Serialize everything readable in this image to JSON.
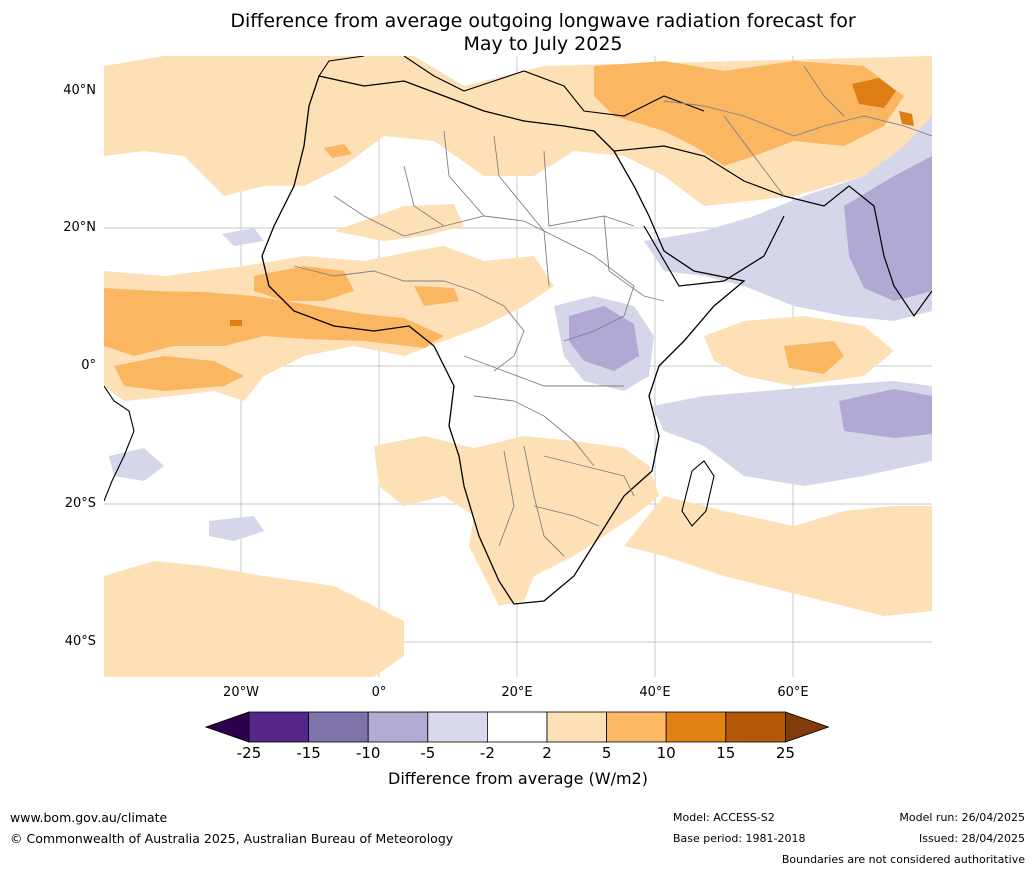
{
  "title": {
    "line1": "Difference from average outgoing longwave radiation forecast for",
    "line2": "May to July 2025"
  },
  "map": {
    "region": "Africa",
    "lat_ticks": [
      "40°N",
      "20°N",
      "0°",
      "20°S",
      "40°S"
    ],
    "lon_ticks": [
      "20°W",
      "0°",
      "20°E",
      "40°E",
      "60°E"
    ],
    "colors": {
      "ocean": "#ffffff",
      "neg_5_2": "#d6d6ea",
      "neg_10_5": "#b1a9d3",
      "pos_2_5": "#fde0b6",
      "pos_5_10": "#fbb662",
      "pos_10_15": "#de7d14",
      "pos_15_25": "#b35806",
      "coastline": "#000000",
      "borders": "#808080"
    }
  },
  "colorbar": {
    "labels": [
      "-25",
      "-15",
      "-10",
      "-5",
      "-2",
      "2",
      "5",
      "10",
      "15",
      "25"
    ],
    "colors": [
      "#2d004b",
      "#542788",
      "#8073ac",
      "#b2abd2",
      "#d8daeb",
      "#ffffff",
      "#fee0b6",
      "#fdb863",
      "#e08214",
      "#b35806",
      "#7f3b08"
    ],
    "title": "Difference from average (W/m2)"
  },
  "footer": {
    "website": "www.bom.gov.au/climate",
    "copyright": "© Commonwealth of Australia 2025, Australian Bureau of Meteorology",
    "model": "Model: ACCESS-S2",
    "base_period": "Base period: 1981-2018",
    "model_run": "Model run: 26/04/2025",
    "issued": "Issued: 28/04/2025",
    "disclaimer": "Boundaries are not considered authoritative"
  }
}
